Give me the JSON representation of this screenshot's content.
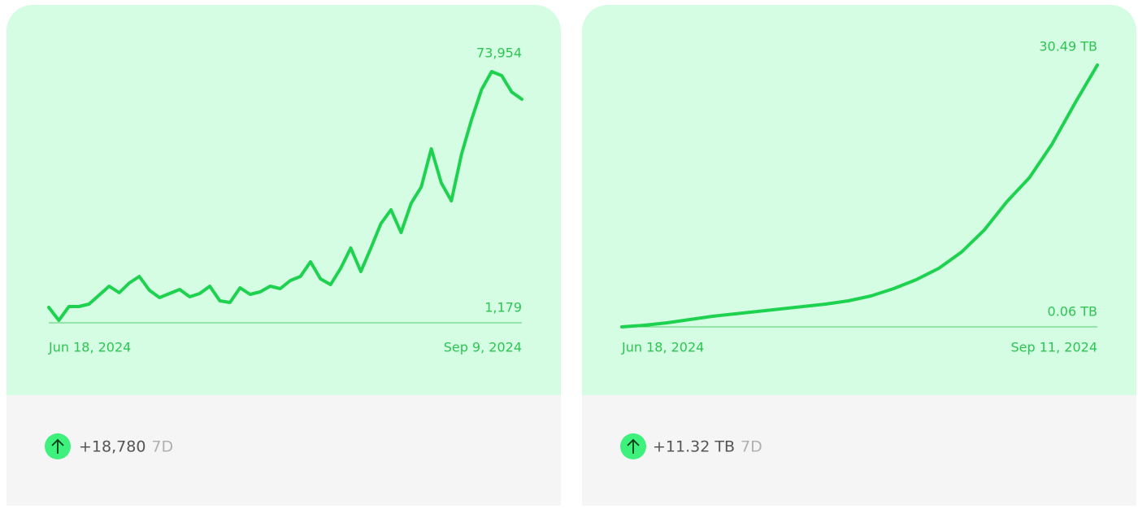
{
  "chart_data": [
    {
      "type": "line",
      "color": "#1ed24f",
      "categories": [
        "Jun 18, 2024",
        null,
        null,
        null,
        null,
        null,
        null,
        null,
        null,
        null,
        null,
        null,
        null,
        null,
        null,
        null,
        null,
        null,
        null,
        null,
        null,
        null,
        null,
        null,
        null,
        null,
        null,
        null,
        null,
        null,
        null,
        null,
        null,
        null,
        null,
        null,
        null,
        null,
        null,
        null,
        null,
        null,
        null,
        null,
        null,
        null,
        null,
        "Sep 9, 2024"
      ],
      "values": [
        5654,
        1886,
        5889,
        5889,
        6596,
        9186,
        11777,
        9893,
        12719,
        14603,
        10599,
        8480,
        9657,
        10835,
        8715,
        9657,
        11777,
        7538,
        7066,
        11306,
        9422,
        10128,
        11777,
        11070,
        13425,
        14603,
        18842,
        13896,
        12248,
        16958,
        22845,
        16016,
        22845,
        29910,
        33914,
        27320,
        35798,
        40508,
        51576,
        41685,
        36504,
        49928,
        60000,
        68768,
        73954,
        72771,
        68000,
        65942
      ],
      "ylim": [
        1179,
        73954
      ],
      "yticks": [
        {
          "value": 1179,
          "label": "1,179"
        },
        {
          "value": 73954,
          "label": "73,954"
        }
      ]
    },
    {
      "type": "line",
      "color": "#1ed24f",
      "categories": [
        "Jun 18, 2024",
        null,
        null,
        null,
        null,
        null,
        null,
        null,
        null,
        null,
        null,
        null,
        null,
        null,
        null,
        null,
        null,
        null,
        null,
        null,
        null,
        "Sep 11, 2024"
      ],
      "values": [
        0.06,
        0.25,
        0.53,
        0.91,
        1.29,
        1.57,
        1.86,
        2.14,
        2.42,
        2.71,
        3.08,
        3.65,
        4.5,
        5.54,
        6.86,
        8.75,
        11.3,
        14.6,
        17.4,
        21.3,
        26.0,
        30.49
      ],
      "ylim": [
        0.06,
        30.49
      ],
      "yticks": [
        {
          "value": 0.06,
          "label": "0.06 TB"
        },
        {
          "value": 30.49,
          "label": "30.49 TB"
        }
      ]
    }
  ],
  "cards": [
    {
      "delta": "+18,780",
      "period": "7D"
    },
    {
      "delta": "+11.32 TB",
      "period": "7D"
    }
  ]
}
